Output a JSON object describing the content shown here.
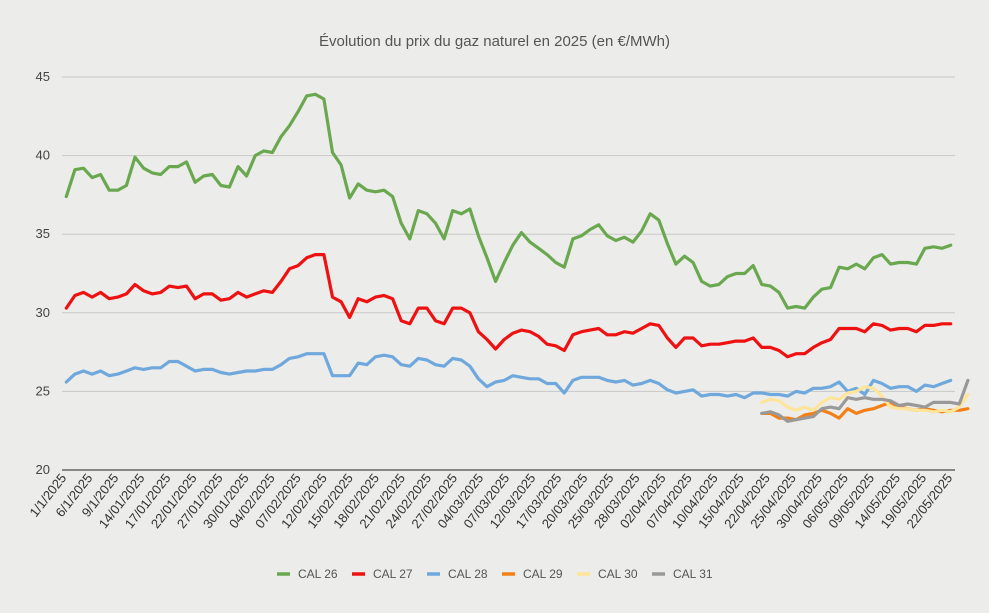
{
  "chart_data": {
    "type": "line",
    "title": "Évolution du prix du gaz naturel en 2025 (en €/MWh)",
    "xlabel": "",
    "ylabel": "",
    "ylim": [
      20,
      45
    ],
    "yticks": [
      20,
      25,
      30,
      35,
      40,
      45
    ],
    "grid": "horizontal",
    "legend_position": "bottom",
    "x_tick_labels": [
      "1/1/2025",
      "6/1/2025",
      "9/1/2025",
      "14/01/2025",
      "17/01/2025",
      "22/01/2025",
      "27/01/2025",
      "30/01/2025",
      "04/02/2025",
      "07/02/2025",
      "12/02/2025",
      "15/02/2025",
      "18/02/2025",
      "21/02/2025",
      "24/02/2025",
      "27/02/2025",
      "04/03/2025",
      "07/03/2025",
      "12/03/2025",
      "17/03/2025",
      "20/03/2025",
      "25/03/2025",
      "28/03/2025",
      "02/04/2025",
      "07/04/2025",
      "10/04/2025",
      "15/04/2025",
      "22/04/2025",
      "25/04/2025",
      "30/04/2025",
      "06/05/2025",
      "09/05/2025",
      "14/05/2025",
      "19/05/2025",
      "22/05/2025"
    ],
    "series": [
      {
        "name": "CAL 26",
        "color": "#6aa84f",
        "start_index": 0,
        "values": [
          37.4,
          39.1,
          39.2,
          38.6,
          38.8,
          37.8,
          37.8,
          38.1,
          39.9,
          39.2,
          38.9,
          38.8,
          39.3,
          39.3,
          39.6,
          38.3,
          38.7,
          38.8,
          38.1,
          38.0,
          39.3,
          38.7,
          40.0,
          40.3,
          40.2,
          41.2,
          41.9,
          42.8,
          43.8,
          43.9,
          43.6,
          40.2,
          39.4,
          37.3,
          38.2,
          37.8,
          37.7,
          37.8,
          37.4,
          35.7,
          34.7,
          36.5,
          36.3,
          35.7,
          34.7,
          36.5,
          36.3,
          36.6,
          34.9,
          33.5,
          32.0,
          33.2,
          34.3,
          35.1,
          34.5,
          34.1,
          33.7,
          33.2,
          32.9,
          34.7,
          34.9,
          35.3,
          35.6,
          34.9,
          34.6,
          34.8,
          34.5,
          35.2,
          36.3,
          35.9,
          34.4,
          33.1,
          33.6,
          33.2,
          32.0,
          31.7,
          31.8,
          32.3,
          32.5,
          32.5,
          33.0,
          31.8,
          31.7,
          31.3,
          30.3,
          30.4,
          30.3,
          31.0,
          31.5,
          31.6,
          32.9,
          32.8,
          33.1,
          32.8,
          33.5,
          33.7,
          33.1,
          33.2,
          33.2,
          33.1,
          34.1,
          34.2,
          34.1,
          34.3
        ]
      },
      {
        "name": "CAL 27",
        "color": "#ee1111",
        "start_index": 0,
        "values": [
          30.3,
          31.1,
          31.3,
          31.0,
          31.3,
          30.9,
          31.0,
          31.2,
          31.8,
          31.4,
          31.2,
          31.3,
          31.7,
          31.6,
          31.7,
          30.9,
          31.2,
          31.2,
          30.8,
          30.9,
          31.3,
          31.0,
          31.2,
          31.4,
          31.3,
          32.0,
          32.8,
          33.0,
          33.5,
          33.7,
          33.7,
          31.0,
          30.7,
          29.7,
          30.9,
          30.7,
          31.0,
          31.1,
          30.9,
          29.5,
          29.3,
          30.3,
          30.3,
          29.5,
          29.3,
          30.3,
          30.3,
          30.0,
          28.8,
          28.3,
          27.7,
          28.3,
          28.7,
          28.9,
          28.8,
          28.5,
          28.0,
          27.9,
          27.6,
          28.6,
          28.8,
          28.9,
          29.0,
          28.6,
          28.6,
          28.8,
          28.7,
          29.0,
          29.3,
          29.2,
          28.4,
          27.8,
          28.4,
          28.4,
          27.9,
          28.0,
          28.0,
          28.1,
          28.2,
          28.2,
          28.4,
          27.8,
          27.8,
          27.6,
          27.2,
          27.4,
          27.4,
          27.8,
          28.1,
          28.3,
          29.0,
          29.0,
          29.0,
          28.8,
          29.3,
          29.2,
          28.9,
          29.0,
          29.0,
          28.8,
          29.2,
          29.2,
          29.3,
          29.3
        ]
      },
      {
        "name": "CAL 28",
        "color": "#6fa8dc",
        "start_index": 0,
        "values": [
          25.6,
          26.1,
          26.3,
          26.1,
          26.3,
          26.0,
          26.1,
          26.3,
          26.5,
          26.4,
          26.5,
          26.5,
          26.9,
          26.9,
          26.6,
          26.3,
          26.4,
          26.4,
          26.2,
          26.1,
          26.2,
          26.3,
          26.3,
          26.4,
          26.4,
          26.7,
          27.1,
          27.2,
          27.4,
          27.4,
          27.4,
          26.0,
          26.0,
          26.0,
          26.8,
          26.7,
          27.2,
          27.3,
          27.2,
          26.7,
          26.6,
          27.1,
          27.0,
          26.7,
          26.6,
          27.1,
          27.0,
          26.6,
          25.8,
          25.3,
          25.6,
          25.7,
          26.0,
          25.9,
          25.8,
          25.8,
          25.5,
          25.5,
          24.9,
          25.7,
          25.9,
          25.9,
          25.9,
          25.7,
          25.6,
          25.7,
          25.4,
          25.5,
          25.7,
          25.5,
          25.1,
          24.9,
          25.0,
          25.1,
          24.7,
          24.8,
          24.8,
          24.7,
          24.8,
          24.6,
          24.9,
          24.9,
          24.8,
          24.8,
          24.7,
          25.0,
          24.9,
          25.2,
          25.2,
          25.3,
          25.6,
          25.0,
          25.2,
          24.8,
          25.7,
          25.5,
          25.2,
          25.3,
          25.3,
          25.0,
          25.4,
          25.3,
          25.5,
          25.7
        ]
      },
      {
        "name": "CAL 29",
        "color": "#f57f17",
        "start_index": 81,
        "values": [
          23.6,
          23.6,
          23.3,
          23.3,
          23.2,
          23.5,
          23.6,
          23.8,
          23.6,
          23.3,
          23.9,
          23.6,
          23.8,
          23.9,
          24.1,
          24.3,
          24.0,
          23.9,
          23.8,
          23.9,
          23.8,
          23.7,
          23.8,
          23.8,
          23.9
        ]
      },
      {
        "name": "CAL 30",
        "color": "#ffe599",
        "start_index": 81,
        "values": [
          24.3,
          24.5,
          24.4,
          24.0,
          23.8,
          24.0,
          23.8,
          24.3,
          24.6,
          24.5,
          24.9,
          25.0,
          25.3,
          25.2,
          24.7,
          24.0,
          23.9,
          23.9,
          23.8,
          23.8,
          23.7,
          23.8,
          23.7,
          24.0,
          24.8
        ]
      },
      {
        "name": "CAL 31",
        "color": "#999999",
        "start_index": 81,
        "values": [
          23.6,
          23.7,
          23.5,
          23.1,
          23.2,
          23.3,
          23.4,
          23.9,
          24.0,
          23.9,
          24.6,
          24.5,
          24.6,
          24.5,
          24.5,
          24.4,
          24.1,
          24.2,
          24.1,
          24.0,
          24.3,
          24.3,
          24.3,
          24.2,
          25.7
        ]
      }
    ]
  }
}
